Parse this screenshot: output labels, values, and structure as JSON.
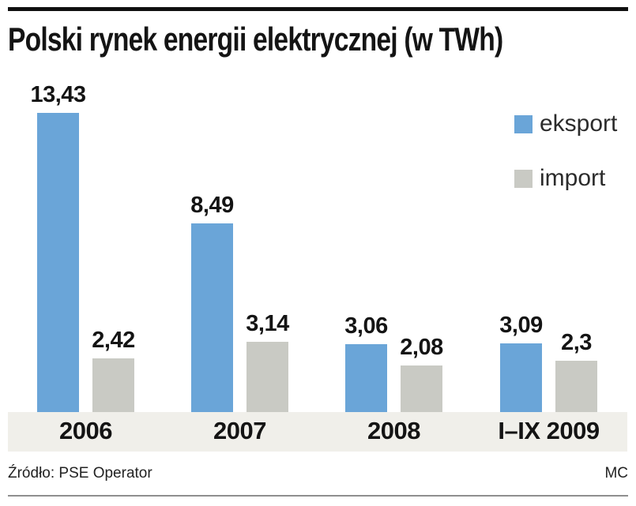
{
  "title": "Polski rynek energii elektrycznej (w TWh)",
  "source": "Źródło: PSE Operator",
  "credit": "MC",
  "colors": {
    "eksport": "#6aa5d8",
    "import": "#c9cac4",
    "axis_band": "#f0efea",
    "text": "#141414"
  },
  "chart_data": {
    "type": "bar",
    "title": "Polski rynek energii elektrycznej (w TWh)",
    "unit": "TWh",
    "categories": [
      "2006",
      "2007",
      "2008",
      "I–IX 2009"
    ],
    "series": [
      {
        "name": "eksport",
        "color": "#6aa5d8",
        "values": [
          13.43,
          8.49,
          3.06,
          3.09
        ],
        "labels": [
          "13,43",
          "8,49",
          "3,06",
          "3,09"
        ]
      },
      {
        "name": "import",
        "color": "#c9cac4",
        "values": [
          2.42,
          3.14,
          2.08,
          2.3
        ],
        "labels": [
          "2,42",
          "3,14",
          "2,08",
          "2,3"
        ]
      }
    ],
    "ylim": [
      0,
      13.43
    ],
    "grid": false,
    "legend_position": "top-right",
    "axis_band_color": "#f0efea",
    "source": "Źródło: PSE Operator",
    "credit": "MC"
  }
}
